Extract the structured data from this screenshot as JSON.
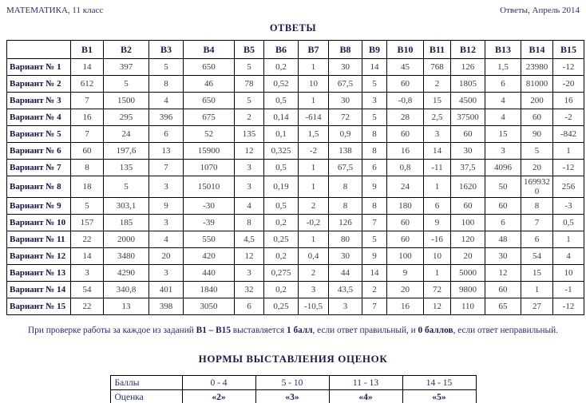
{
  "page": {
    "header_left": "МАТЕМАТИКА, 11 класс",
    "header_right": "Ответы, Апрель 2014",
    "title": "ОТВЕТЫ"
  },
  "colors": {
    "text_navy": "#1b1b4c",
    "text_values": "#3c3c33",
    "border": "#000000",
    "background": "#ffffff"
  },
  "answers_table": {
    "corner_label": "",
    "columns": [
      "В1",
      "В2",
      "В3",
      "В4",
      "В5",
      "В6",
      "В7",
      "В8",
      "В9",
      "В10",
      "В11",
      "В12",
      "В13",
      "В14",
      "В15"
    ],
    "rows": [
      {
        "label": "Вариант № 1",
        "values": [
          "14",
          "397",
          "5",
          "650",
          "5",
          "0,2",
          "1",
          "30",
          "14",
          "45",
          "768",
          "126",
          "1,5",
          "23980",
          "-12"
        ]
      },
      {
        "label": "Вариант № 2",
        "values": [
          "612",
          "5",
          "8",
          "46",
          "78",
          "0,52",
          "10",
          "67,5",
          "5",
          "60",
          "2",
          "1805",
          "6",
          "81000",
          "-20"
        ]
      },
      {
        "label": "Вариант № 3",
        "values": [
          "7",
          "1500",
          "4",
          "650",
          "5",
          "0,5",
          "1",
          "30",
          "3",
          "-0,8",
          "15",
          "4500",
          "4",
          "200",
          "16"
        ]
      },
      {
        "label": "Вариант № 4",
        "values": [
          "16",
          "295",
          "396",
          "675",
          "2",
          "0,14",
          "-614",
          "72",
          "5",
          "28",
          "2,5",
          "37500",
          "4",
          "60",
          "-2"
        ]
      },
      {
        "label": "Вариант № 5",
        "values": [
          "7",
          "24",
          "6",
          "52",
          "135",
          "0,1",
          "1,5",
          "0,9",
          "8",
          "60",
          "3",
          "60",
          "15",
          "90",
          "-842"
        ]
      },
      {
        "label": "Вариант № 6",
        "values": [
          "60",
          "197,6",
          "13",
          "15900",
          "12",
          "0,325",
          "-2",
          "138",
          "8",
          "16",
          "14",
          "30",
          "3",
          "5",
          "1"
        ]
      },
      {
        "label": "Вариант № 7",
        "values": [
          "8",
          "135",
          "7",
          "1070",
          "3",
          "0,5",
          "1",
          "67,5",
          "6",
          "0,8",
          "-11",
          "37,5",
          "4096",
          "20",
          "-12"
        ]
      },
      {
        "label": "Вариант № 8",
        "values": [
          "18",
          "5",
          "3",
          "15010",
          "3",
          "0,19",
          "1",
          "8",
          "9",
          "24",
          "1",
          "1620",
          "50",
          "1699320",
          "256"
        ]
      },
      {
        "label": "Вариант № 9",
        "values": [
          "5",
          "303,1",
          "9",
          "-30",
          "4",
          "0,5",
          "2",
          "8",
          "8",
          "180",
          "6",
          "60",
          "60",
          "8",
          "-3"
        ]
      },
      {
        "label": "Вариант № 10",
        "values": [
          "157",
          "185",
          "3",
          "-39",
          "8",
          "0,2",
          "-0,2",
          "126",
          "7",
          "60",
          "9",
          "100",
          "6",
          "7",
          "0,5"
        ]
      },
      {
        "label": "Вариант № 11",
        "values": [
          "22",
          "2000",
          "4",
          "550",
          "4,5",
          "0,25",
          "1",
          "80",
          "5",
          "60",
          "-16",
          "120",
          "48",
          "6",
          "1"
        ]
      },
      {
        "label": "Вариант № 12",
        "values": [
          "14",
          "3480",
          "20",
          "420",
          "12",
          "0,2",
          "0,4",
          "30",
          "9",
          "100",
          "10",
          "20",
          "30",
          "54",
          "4"
        ]
      },
      {
        "label": "Вариант № 13",
        "values": [
          "3",
          "4290",
          "3",
          "440",
          "3",
          "0,275",
          "2",
          "44",
          "14",
          "9",
          "1",
          "5000",
          "12",
          "15",
          "10"
        ]
      },
      {
        "label": "Вариант № 14",
        "values": [
          "54",
          "340,8",
          "401",
          "1840",
          "32",
          "0,2",
          "3",
          "43,5",
          "2",
          "20",
          "72",
          "9800",
          "60",
          "1",
          "-1"
        ]
      },
      {
        "label": "Вариант № 15",
        "values": [
          "22",
          "13",
          "398",
          "3050",
          "6",
          "0,25",
          "-10,5",
          "3",
          "7",
          "16",
          "12",
          "110",
          "65",
          "27",
          "-12"
        ]
      }
    ]
  },
  "note": {
    "segments": [
      {
        "text": "При проверке работы за каждое из заданий ",
        "bold": false
      },
      {
        "text": "В1 – В15",
        "bold": true
      },
      {
        "text": " выставляется ",
        "bold": false
      },
      {
        "text": "1 балл",
        "bold": true
      },
      {
        "text": ", если ответ правильный, и ",
        "bold": false
      },
      {
        "text": "0 баллов",
        "bold": true
      },
      {
        "text": ", если ответ неправильный.",
        "bold": false
      }
    ]
  },
  "grading": {
    "title": "НОРМЫ ВЫСТАВЛЕНИЯ ОЦЕНОК",
    "rows": [
      {
        "label": "Баллы",
        "values": [
          "0 - 4",
          "5 - 10",
          "11 - 13",
          "14 - 15"
        ],
        "bold_values": false
      },
      {
        "label": "Оценка",
        "values": [
          "«2»",
          "«3»",
          "«4»",
          "«5»"
        ],
        "bold_values": true
      }
    ]
  }
}
